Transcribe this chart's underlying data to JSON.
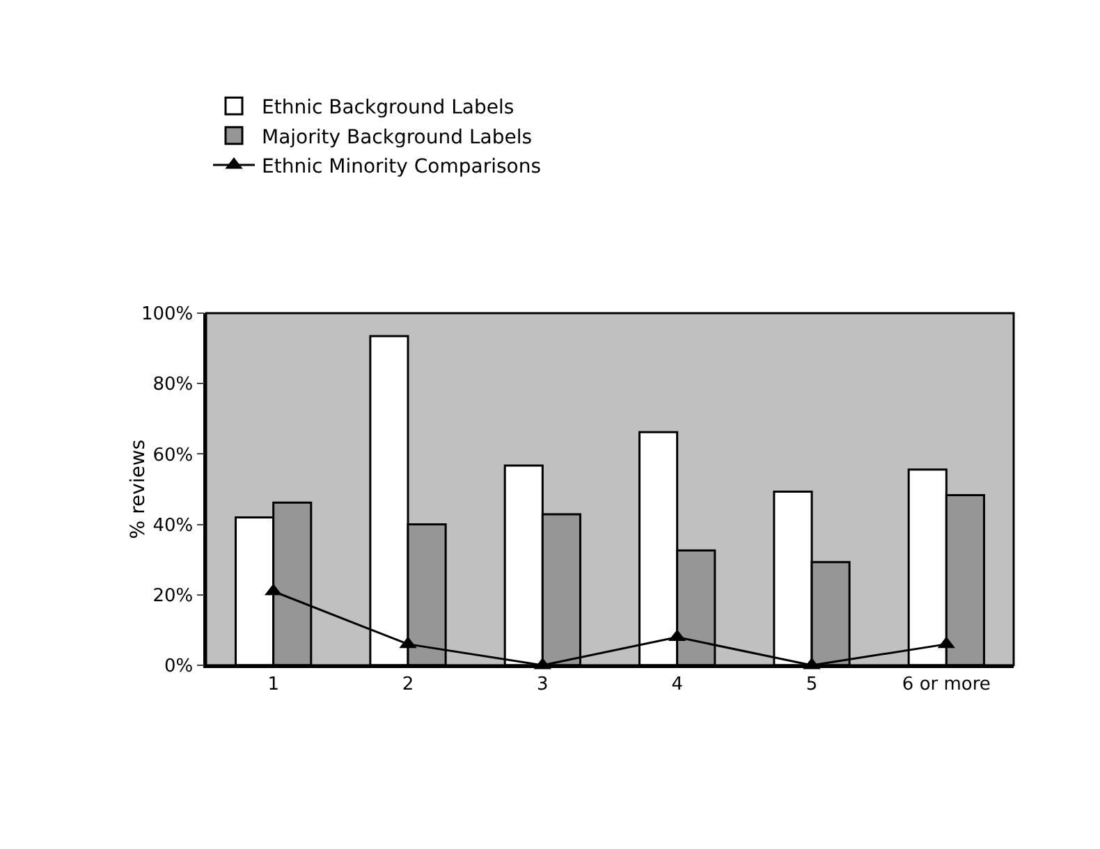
{
  "chart_data": {
    "type": "bar",
    "ylabel": "% reviews",
    "categories": [
      "1",
      "2",
      "3",
      "4",
      "5",
      "6 or more"
    ],
    "series": [
      {
        "name": "Ethnic Background Labels",
        "color": "#ffffff",
        "values": [
          42,
          93.5,
          56.7,
          66.2,
          49.3,
          55.6
        ]
      },
      {
        "name": "Majority Background Labels",
        "color": "#969696",
        "values": [
          46.2,
          40,
          42.9,
          32.6,
          29.3,
          48.3
        ]
      },
      {
        "name": "Ethnic Minority Comparisons",
        "type": "line",
        "color": "#000000",
        "marker": "triangle",
        "values": [
          21,
          6,
          0,
          8,
          0,
          6
        ]
      }
    ],
    "ylim": [
      0,
      100
    ],
    "yticks": [
      {
        "value": 0,
        "label": "0%"
      },
      {
        "value": 20,
        "label": "20%"
      },
      {
        "value": 40,
        "label": "40%"
      },
      {
        "value": 60,
        "label": "60%"
      },
      {
        "value": 80,
        "label": "80%"
      },
      {
        "value": 100,
        "label": "100%"
      }
    ],
    "grid": false,
    "legend": "top left"
  }
}
